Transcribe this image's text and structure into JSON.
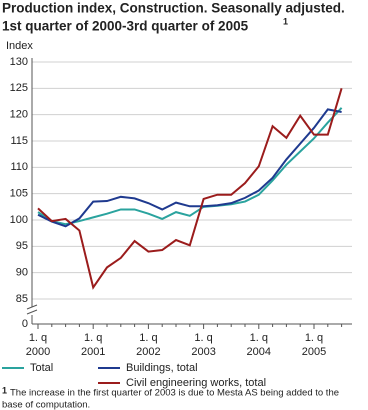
{
  "chart_data": {
    "type": "line",
    "title": [
      "Production index, Construction. Seasonally adjusted.",
      "1st quarter of 2000-3rd quarter of 2005"
    ],
    "title_marker": "1",
    "y_label": "Index",
    "categories": [
      [
        "1. q",
        "2000"
      ],
      null,
      null,
      null,
      [
        "1. q",
        "2001"
      ],
      null,
      null,
      null,
      [
        "1. q",
        "2002"
      ],
      null,
      null,
      null,
      [
        "1. q",
        "2003"
      ],
      null,
      null,
      null,
      [
        "1. q",
        "2004"
      ],
      null,
      null,
      null,
      [
        "1. q",
        "2005"
      ],
      null,
      null
    ],
    "series": [
      {
        "name": "Total",
        "color": "#2aa39e",
        "values": [
          101.5,
          99.8,
          99.2,
          99.8,
          100.5,
          101.2,
          102,
          102,
          101.2,
          100.2,
          101.5,
          100.8,
          102.5,
          102.7,
          103,
          103.5,
          104.8,
          107.5,
          110.5,
          113,
          115.5,
          118.5,
          121.3
        ]
      },
      {
        "name": "Buildings, total",
        "color": "#1f3a8f",
        "values": [
          101,
          99.7,
          98.8,
          100.3,
          103.5,
          103.6,
          104.4,
          104.1,
          103.2,
          102,
          103.3,
          102.6,
          102.6,
          102.8,
          103.2,
          104.2,
          105.6,
          108,
          111.5,
          114.5,
          117.5,
          121,
          120.5
        ]
      },
      {
        "name": "Civil engineering works, total",
        "color": "#9b1c1c",
        "values": [
          102.2,
          99.8,
          100.2,
          98,
          87.2,
          91,
          92.8,
          96,
          94,
          94.3,
          96.2,
          95.2,
          104,
          104.8,
          104.8,
          107,
          110.2,
          117.8,
          115.6,
          119.8,
          116.2,
          116.2,
          125
        ]
      }
    ],
    "ylim": [
      85,
      130
    ],
    "yticks": [
      85,
      90,
      95,
      100,
      105,
      110,
      115,
      120,
      125,
      130
    ],
    "axis_break_tick": 0,
    "grid": true,
    "footnote_marker": "1",
    "footnote": [
      "The increase in the first quarter of 2003 is due to Mesta AS being added to the",
      "base of computation."
    ]
  }
}
